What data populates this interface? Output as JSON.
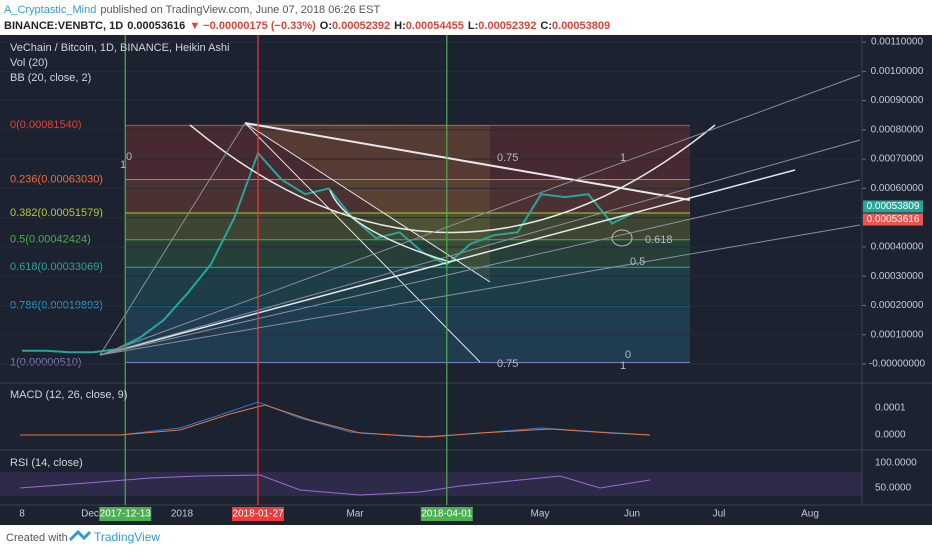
{
  "header": {
    "author": "A_Cryptastic_Mind",
    "published": "published on TradingView.com, June 07, 2018 06:26 EST",
    "symbol": "BINANCE:VENBTC, 1D",
    "last": "0.00053616",
    "change": "▼ −0.00000175 (−0.33%)",
    "ohlc": [
      {
        "label": "O:",
        "value": "0.00052392"
      },
      {
        "label": "H:",
        "value": "0.00054455"
      },
      {
        "label": "L:",
        "value": "0.00052392"
      },
      {
        "label": "C:",
        "value": "0.00053809"
      }
    ]
  },
  "chart_data": {
    "type": "line",
    "title": "VeChain / Bitcoin, 1D, BINANCE, Heikin Ashi",
    "indicators": [
      "Vol (20)",
      "BB (20, close, 2)"
    ],
    "color": "#26a69a",
    "categories": [
      null,
      null,
      null,
      null,
      null,
      null,
      null,
      null,
      null,
      null,
      null,
      null,
      null,
      null,
      null,
      null,
      null,
      null,
      null,
      null,
      null,
      null,
      null,
      null,
      null,
      null,
      null
    ],
    "values": [
      4.5e-05,
      4.5e-05,
      4e-05,
      4e-05,
      5e-05,
      9e-05,
      0.00015,
      0.00024,
      0.00034,
      0.0005,
      0.00072,
      0.00063,
      0.00058,
      0.0006,
      0.0005,
      0.00043,
      0.00045,
      0.00038,
      0.00034,
      0.00041,
      0.00044,
      0.00045,
      0.00058,
      0.00057,
      0.00058,
      0.00048,
      0.00052
    ],
    "ylim": [
      -6.5e-05,
      0.001124
    ],
    "yticks": [
      {
        "value": 0.0011,
        "label": "0.00110000"
      },
      {
        "value": 0.001,
        "label": "0.00100000"
      },
      {
        "value": 0.0009,
        "label": "0.00090000"
      },
      {
        "value": 0.0008,
        "label": "0.00080000"
      },
      {
        "value": 0.0007,
        "label": "0.00070000"
      },
      {
        "value": 0.0006,
        "label": "0.00060000"
      },
      {
        "value": 0.0005,
        "label": "0.00050000"
      },
      {
        "value": 0.0004,
        "label": "0.00040000"
      },
      {
        "value": 0.0003,
        "label": "0.00030000"
      },
      {
        "value": 0.0002,
        "label": "0.00020000"
      },
      {
        "value": 0.0001,
        "label": "0.00010000"
      },
      {
        "value": 0,
        "label": "-0.00000000"
      }
    ],
    "grid": true,
    "fib_levels": [
      {
        "value": 0.0008154,
        "label": "0(0.00081540)",
        "color": "#e0443a"
      },
      {
        "value": 0.0006303,
        "label": "0.236(0.00063030)",
        "color": "#f2683a"
      },
      {
        "value": 0.00051579,
        "label": "0.382(0.00051579)",
        "color": "#b5c83a"
      },
      {
        "value": 0.00042424,
        "label": "0.5(0.00042424)",
        "color": "#4caf50"
      },
      {
        "value": 0.00033069,
        "label": "0.618(0.00033069)",
        "color": "#26a69a"
      },
      {
        "value": 0.00019893,
        "label": "0.786(0.00019893)",
        "color": "#2c9cc8"
      },
      {
        "value": 5.1e-06,
        "label": "1(0.00000510)",
        "color": "#7e7eb8"
      }
    ],
    "price_labels": [
      {
        "value": 0.00053809,
        "label": "0.00053809",
        "color": "#26a69a"
      },
      {
        "value": 0.00053616,
        "label": "0.00053616",
        "color": "#ef5350"
      }
    ],
    "drawing_labels": [
      "0.75",
      "1",
      "0.75",
      "0",
      "1",
      "0.5",
      "0.618",
      "1",
      "0"
    ],
    "x_axis_labels": [
      "8",
      "Dec",
      "2018",
      "Mar",
      "May",
      "Jun",
      "Jul",
      "Aug"
    ],
    "events": [
      {
        "label": "2017-12-13",
        "color": "#4caf50"
      },
      {
        "label": "2018-01-27",
        "color": "#ef3b3b"
      },
      {
        "label": "2018-04-01",
        "color": "#4caf50"
      }
    ],
    "macd": {
      "title": "MACD (12, 26, close, 9)",
      "axis_labels": [
        "0.0001",
        "0.0000"
      ]
    },
    "rsi": {
      "title": "RSI (14, close)",
      "axis_labels": [
        "100.0000",
        "50.0000"
      ]
    }
  },
  "footer": {
    "created": "Created with",
    "brand": "TradingView"
  }
}
